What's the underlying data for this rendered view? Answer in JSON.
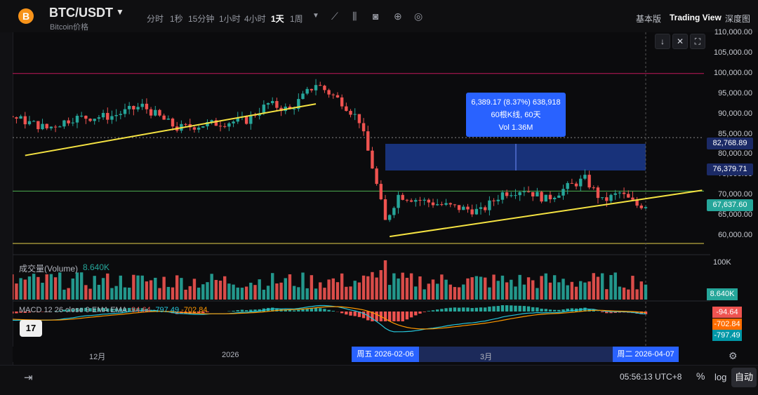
{
  "header": {
    "symbol": "BTC/USDT",
    "subtitle": "Bitcoin价格",
    "coin_glyph": "B",
    "timeframes": [
      "分时",
      "1秒",
      "15分钟",
      "1小时",
      "4小时",
      "1天",
      "1周"
    ],
    "active_timeframe": "1天",
    "views": [
      "基本版",
      "Trading View",
      "深度图"
    ],
    "active_view": "Trading View"
  },
  "chart_data": {
    "type": "candlestick",
    "timeframe": "1天",
    "price_ticks": [
      "110,000.00",
      "105,000.00",
      "100,000.00",
      "95,000.00",
      "90,000.00",
      "85,000.00",
      "80,000.00",
      "75,000.00",
      "70,000.00",
      "65,000.00",
      "60,000.00"
    ],
    "price_range": [
      57000,
      111000
    ],
    "horizontal_lines": [
      {
        "price": 100000,
        "color": "#c2185b"
      },
      {
        "price": 84200,
        "color": "#ffffff"
      },
      {
        "price": 71000,
        "color": "#4caf50"
      },
      {
        "price": 58100,
        "color": "#e6d04a"
      }
    ],
    "trend_lines": [
      {
        "from": [
          "2025-11-15",
          79800
        ],
        "to": [
          "2026-01-21",
          92500
        ],
        "color": "#f5e342"
      },
      {
        "from": [
          "2026-02-07",
          59800
        ],
        "to": [
          "2026-04-20",
          71200
        ],
        "color": "#f5e342"
      }
    ],
    "crosshair_price": "82,768.89",
    "range_low_label": "76,379.71",
    "last_price": "67,637.60",
    "measure": {
      "line1": "6,389.17 (8.37%) 638,918",
      "line2": "60根K线, 60天",
      "line3": "Vol 1.36M"
    },
    "volume": {
      "label": "成交量(Volume)",
      "value": "8.640K",
      "axis_tick": "100K",
      "last": "8.640K"
    },
    "macd": {
      "label": "MACD 12 26 close 9 EMA EMA",
      "hist": "-94.64",
      "macd": "-797.49",
      "signal": "-702.84"
    },
    "time_ticks": [
      "12月",
      "2026",
      "3月"
    ],
    "selected_start": "周五 2026-02-06",
    "selected_end": "周二 2026-04-07"
  },
  "footer": {
    "clock": "05:56:13 UTC+8",
    "percent": "%",
    "log": "log",
    "auto": "自动"
  },
  "colors": {
    "up": "#26a69a",
    "down": "#ef5350",
    "bg": "#0b0b0d",
    "accent": "#2962ff"
  },
  "icons": [
    "coin-icon",
    "chart-type-icon",
    "indicator-icon",
    "screenshot-icon",
    "add-icon",
    "target-icon",
    "settings-icon",
    "fullscreen-icon",
    "goto-date-icon"
  ]
}
